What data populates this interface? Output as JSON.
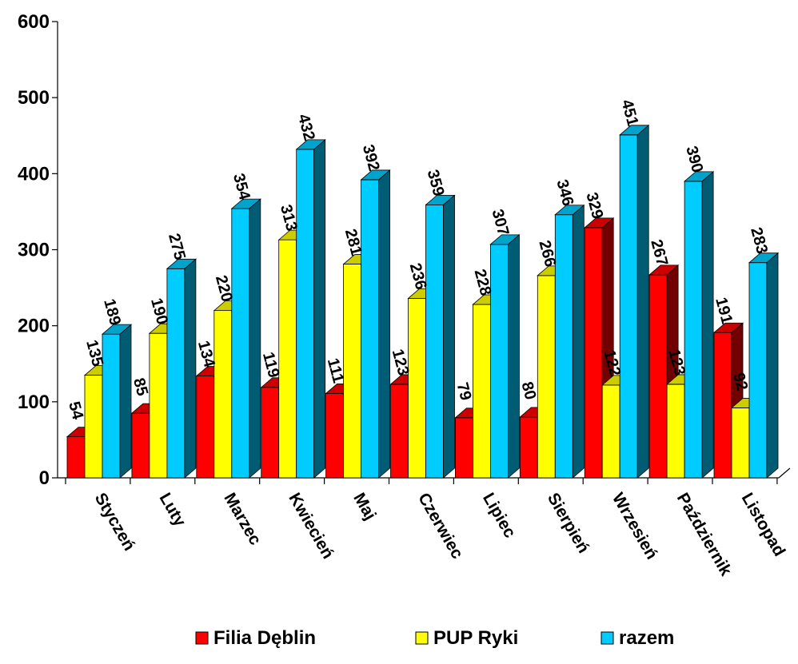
{
  "chart_data": {
    "type": "bar",
    "categories": [
      "Styczeń",
      "Luty",
      "Marzec",
      "Kwiecień",
      "Maj",
      "Czerwiec",
      "Lipiec",
      "Sierpień",
      "Wrzesień",
      "Październik",
      "Listopad"
    ],
    "series": [
      {
        "name": "Filia Dęblin",
        "color": "#ff0000",
        "values": [
          54,
          85,
          134,
          119,
          111,
          123,
          79,
          80,
          329,
          267,
          191
        ]
      },
      {
        "name": "PUP Ryki",
        "color": "#ffff00",
        "values": [
          135,
          190,
          220,
          313,
          281,
          236,
          228,
          266,
          122,
          123,
          92
        ]
      },
      {
        "name": "razem",
        "color": "#00ccff",
        "values": [
          189,
          275,
          354,
          432,
          392,
          359,
          307,
          346,
          451,
          390,
          283
        ]
      }
    ],
    "ylim": [
      0,
      600
    ],
    "yticks": [
      0,
      100,
      200,
      300,
      400,
      500,
      600
    ],
    "legend_position": "bottom",
    "grid": false,
    "style": "3d-clustered-bar"
  }
}
